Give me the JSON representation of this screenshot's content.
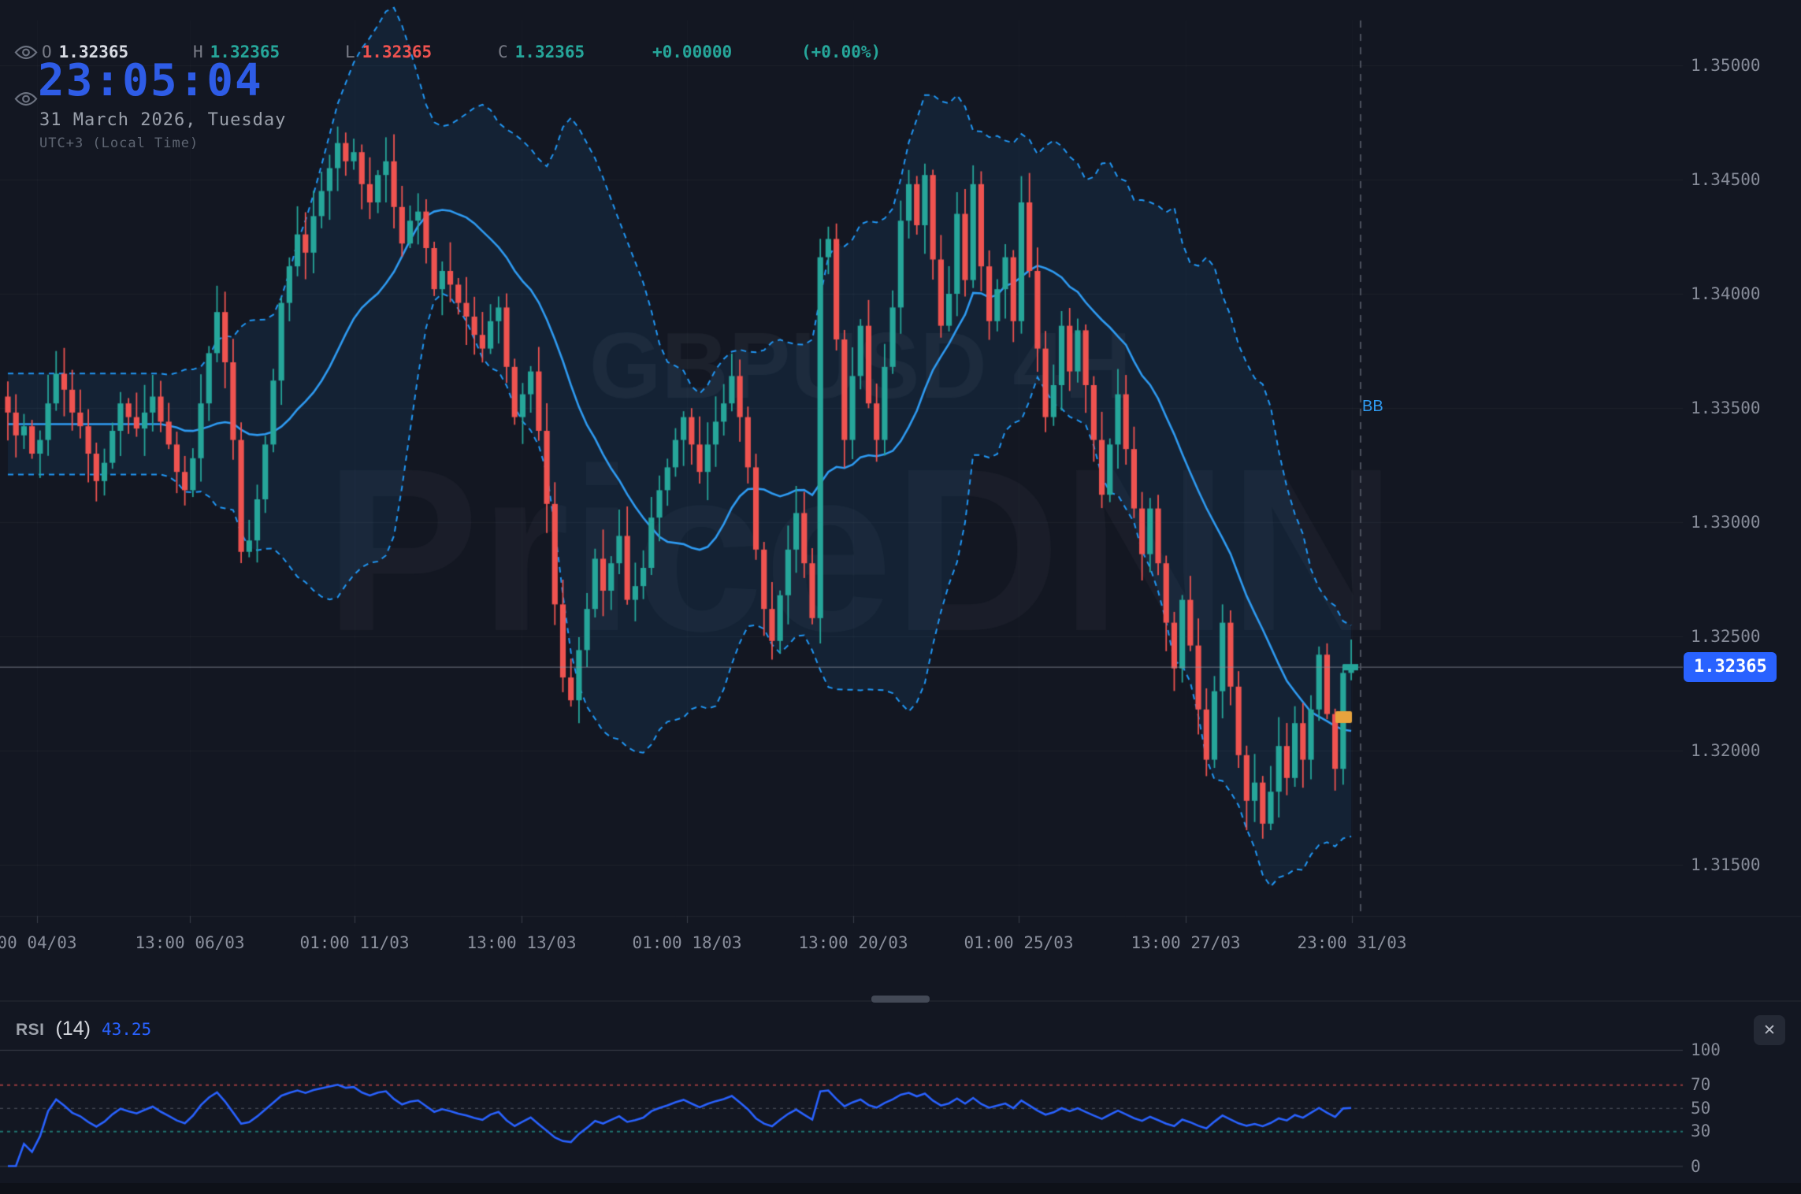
{
  "ohlc": {
    "open_label": "O",
    "open_value": "1.32365",
    "high_label": "H",
    "high_value": "1.32365",
    "low_label": "L",
    "low_value": "1.32365",
    "close_label": "C",
    "close_value": "1.32365",
    "change_value": "+0.00000",
    "change_percent": "(+0.00%)"
  },
  "clock": {
    "time": "23:05:04",
    "date": "31 March 2026, Tuesday",
    "timezone": "UTC+3 (Local Time)"
  },
  "watermark": {
    "line1": "GBPUSD 4H",
    "line2": "PriceDNN"
  },
  "price_axis": {
    "labels": [
      "1.35000",
      "1.34500",
      "1.34000",
      "1.33500",
      "1.33000",
      "1.32500",
      "1.32000",
      "1.31500"
    ],
    "last_price": "1.32365"
  },
  "time_axis": {
    "labels": [
      "00 04/03",
      "13:00 06/03",
      "01:00 11/03",
      "13:00 13/03",
      "01:00 18/03",
      "13:00 20/03",
      "01:00 25/03",
      "13:00 27/03",
      "23:00 31/03"
    ]
  },
  "bb_label": "BB",
  "rsi_panel": {
    "title": "RSI",
    "params": "(14)",
    "value": "43.25",
    "axis_labels": [
      "100",
      "70",
      "50",
      "30",
      "0"
    ]
  },
  "icons": {
    "close": "✕"
  },
  "colors": {
    "background": "#131722",
    "bullish": "#26a69a",
    "bearish": "#ef5350",
    "bollinger": "#2196f3",
    "rsi_line": "#2962ff",
    "price_tag": "#2962ff",
    "clock_blue": "#2e5ce6",
    "marker_orange": "#e8a33d",
    "overbought_line": "#ef5350",
    "oversold_line": "#26a69a",
    "axis_text": "#868b98"
  },
  "chart_data": {
    "type": "candlestick",
    "symbol": "GBPUSD",
    "timeframe": "4H",
    "first_open": 1.3355,
    "last_price": 1.32365,
    "visible_price_range": [
      1.3128,
      1.3529
    ],
    "price_axis_ticks": [
      1.35,
      1.345,
      1.34,
      1.335,
      1.33,
      1.325,
      1.32,
      1.315
    ],
    "closes": [
      1.3348,
      1.3338,
      1.3342,
      1.333,
      1.3336,
      1.3352,
      1.3365,
      1.3358,
      1.3348,
      1.3342,
      1.333,
      1.3318,
      1.3326,
      1.334,
      1.3352,
      1.3346,
      1.3341,
      1.3348,
      1.3355,
      1.3344,
      1.3334,
      1.3322,
      1.3314,
      1.3328,
      1.3352,
      1.3374,
      1.3392,
      1.337,
      1.3336,
      1.3287,
      1.3292,
      1.331,
      1.3334,
      1.3362,
      1.3396,
      1.3412,
      1.3426,
      1.3418,
      1.3434,
      1.3445,
      1.3455,
      1.3466,
      1.3458,
      1.3462,
      1.3448,
      1.344,
      1.3452,
      1.3458,
      1.3438,
      1.3422,
      1.3432,
      1.3436,
      1.342,
      1.3402,
      1.341,
      1.3404,
      1.3396,
      1.339,
      1.3382,
      1.3376,
      1.3388,
      1.3394,
      1.3368,
      1.3346,
      1.3356,
      1.3366,
      1.334,
      1.3308,
      1.3264,
      1.3232,
      1.3222,
      1.3244,
      1.3262,
      1.3284,
      1.327,
      1.3282,
      1.3294,
      1.3266,
      1.3272,
      1.328,
      1.3302,
      1.3314,
      1.3324,
      1.3336,
      1.3346,
      1.3334,
      1.3322,
      1.3334,
      1.3344,
      1.3352,
      1.3364,
      1.3346,
      1.3324,
      1.3288,
      1.3262,
      1.3248,
      1.3268,
      1.3288,
      1.3304,
      1.3282,
      1.3258,
      1.3416,
      1.3424,
      1.338,
      1.3336,
      1.3364,
      1.3386,
      1.3352,
      1.3336,
      1.3368,
      1.3394,
      1.3432,
      1.3448,
      1.343,
      1.3452,
      1.3415,
      1.3386,
      1.34,
      1.3435,
      1.3406,
      1.3448,
      1.3412,
      1.3388,
      1.3402,
      1.3416,
      1.3388,
      1.344,
      1.341,
      1.3376,
      1.3346,
      1.336,
      1.3386,
      1.3366,
      1.3384,
      1.336,
      1.3336,
      1.3312,
      1.3334,
      1.3356,
      1.3332,
      1.3306,
      1.3286,
      1.3306,
      1.3282,
      1.3256,
      1.3236,
      1.3266,
      1.3246,
      1.3218,
      1.3196,
      1.3226,
      1.3256,
      1.3228,
      1.3198,
      1.3178,
      1.3186,
      1.3168,
      1.3182,
      1.3202,
      1.3188,
      1.3212,
      1.3196,
      1.3218,
      1.3242,
      1.3216,
      1.3192,
      1.3234,
      1.32365
    ],
    "indicators": {
      "bollinger_bands": {
        "label": "BB",
        "period": 20,
        "stddev": 2
      },
      "rsi": {
        "label": "RSI",
        "period": 14,
        "current_value": 43.25,
        "guide_levels": [
          100,
          70,
          50,
          30,
          0
        ],
        "axis_range": [
          0,
          100
        ]
      }
    }
  }
}
